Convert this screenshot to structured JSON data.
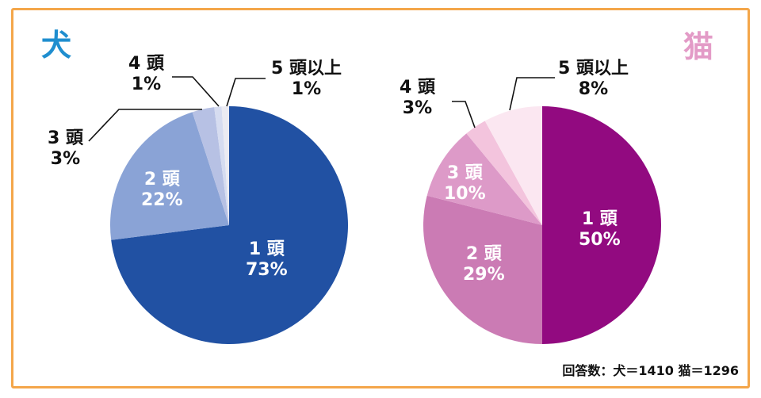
{
  "chart_data": [
    {
      "type": "pie",
      "title": "犬",
      "categories": [
        "1頭",
        "2頭",
        "3頭",
        "4頭",
        "5頭以上"
      ],
      "values": [
        73,
        22,
        3,
        1,
        1
      ],
      "unit": "%",
      "colors": [
        "#2151a3",
        "#8aa3d6",
        "#b7c1e4",
        "#d6dcf0",
        "#ebebf2"
      ],
      "start_angle": "12 o'clock, clockwise",
      "n": 1410
    },
    {
      "type": "pie",
      "title": "猫",
      "categories": [
        "1頭",
        "2頭",
        "3頭",
        "4頭",
        "5頭以上"
      ],
      "values": [
        50,
        29,
        10,
        3,
        8
      ],
      "unit": "%",
      "colors": [
        "#920a80",
        "#cb7bb4",
        "#dd9ac8",
        "#f3c4dd",
        "#fbe7f1"
      ],
      "start_angle": "12 o'clock, clockwise",
      "n": 1296
    }
  ],
  "titles": {
    "dog": "犬",
    "cat": "猫"
  },
  "dog_labels": {
    "s1": {
      "name": "1 頭",
      "pct": "73%"
    },
    "s2": {
      "name": "2 頭",
      "pct": "22%"
    },
    "s3": {
      "name": "3 頭",
      "pct": "3%"
    },
    "s4": {
      "name": "4 頭",
      "pct": "1%"
    },
    "s5": {
      "name": "5 頭以上",
      "pct": "1%"
    }
  },
  "cat_labels": {
    "s1": {
      "name": "1 頭",
      "pct": "50%"
    },
    "s2": {
      "name": "2 頭",
      "pct": "29%"
    },
    "s3": {
      "name": "3 頭",
      "pct": "10%"
    },
    "s4": {
      "name": "4 頭",
      "pct": "3%"
    },
    "s5": {
      "name": "5 頭以上",
      "pct": "8%"
    }
  },
  "footer": "回答数：犬＝1410 猫＝1296",
  "colors": {
    "frame": "#f4a64a",
    "dog_title": "#1f8ecf",
    "cat_title": "#e39bc7"
  }
}
